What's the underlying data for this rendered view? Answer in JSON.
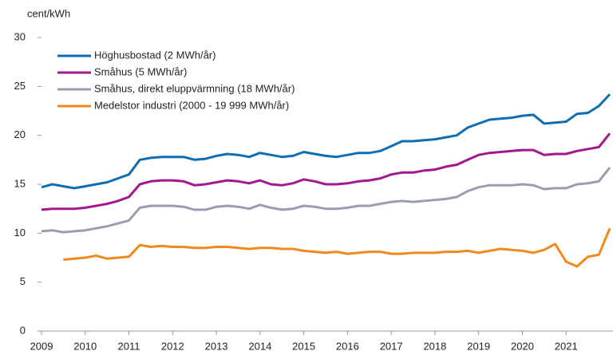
{
  "chart_data": {
    "type": "line",
    "y_label": "cent/kWh",
    "x": [
      2009,
      2009.25,
      2009.5,
      2009.75,
      2010,
      2010.25,
      2010.5,
      2010.75,
      2011,
      2011.25,
      2011.5,
      2011.75,
      2012,
      2012.25,
      2012.5,
      2012.75,
      2013,
      2013.25,
      2013.5,
      2013.75,
      2014,
      2014.25,
      2014.5,
      2014.75,
      2015,
      2015.25,
      2015.5,
      2015.75,
      2016,
      2016.25,
      2016.5,
      2016.75,
      2017,
      2017.25,
      2017.5,
      2017.75,
      2018,
      2018.25,
      2018.5,
      2018.75,
      2019,
      2019.25,
      2019.5,
      2019.75,
      2020,
      2020.25,
      2020.5,
      2020.75,
      2021,
      2021.25,
      2021.5,
      2021.75,
      2022
    ],
    "series": [
      {
        "name": "Höghusbostad (2 MWh/år)",
        "color": "#0e6eb4",
        "values": [
          14.7,
          15.0,
          14.8,
          14.6,
          14.8,
          15.0,
          15.2,
          15.6,
          16.0,
          17.5,
          17.7,
          17.8,
          17.8,
          17.8,
          17.5,
          17.6,
          17.9,
          18.1,
          18.0,
          17.8,
          18.2,
          18.0,
          17.8,
          17.9,
          18.3,
          18.1,
          17.9,
          17.8,
          18.0,
          18.2,
          18.2,
          18.4,
          18.9,
          19.4,
          19.4,
          19.5,
          19.6,
          19.8,
          20.0,
          20.8,
          21.2,
          21.6,
          21.7,
          21.8,
          22.0,
          22.1,
          21.2,
          21.3,
          21.4,
          22.2,
          22.3,
          23.0,
          24.2
        ]
      },
      {
        "name": "Småhus (5 MWh/år)",
        "color": "#a3178f",
        "values": [
          12.4,
          12.5,
          12.5,
          12.5,
          12.6,
          12.8,
          13.0,
          13.3,
          13.7,
          15.0,
          15.3,
          15.4,
          15.4,
          15.3,
          14.9,
          15.0,
          15.2,
          15.4,
          15.3,
          15.1,
          15.4,
          15.0,
          14.9,
          15.1,
          15.5,
          15.3,
          15.0,
          15.0,
          15.1,
          15.3,
          15.4,
          15.6,
          16.0,
          16.2,
          16.2,
          16.4,
          16.5,
          16.8,
          17.0,
          17.5,
          18.0,
          18.2,
          18.3,
          18.4,
          18.5,
          18.5,
          18.0,
          18.1,
          18.1,
          18.4,
          18.6,
          18.8,
          20.2
        ]
      },
      {
        "name": "Småhus, direkt eluppvärmning (18 MWh/år)",
        "color": "#9a9db0",
        "values": [
          10.2,
          10.3,
          10.1,
          10.2,
          10.3,
          10.5,
          10.7,
          11.0,
          11.3,
          12.6,
          12.8,
          12.8,
          12.8,
          12.7,
          12.4,
          12.4,
          12.7,
          12.8,
          12.7,
          12.5,
          12.9,
          12.6,
          12.4,
          12.5,
          12.8,
          12.7,
          12.5,
          12.5,
          12.6,
          12.8,
          12.8,
          13.0,
          13.2,
          13.3,
          13.2,
          13.3,
          13.4,
          13.5,
          13.7,
          14.3,
          14.7,
          14.9,
          14.9,
          14.9,
          15.0,
          14.9,
          14.5,
          14.6,
          14.6,
          15.0,
          15.1,
          15.3,
          16.7
        ]
      },
      {
        "name": "Medelstor industri (2000 - 19 999 MWh/år)",
        "color": "#f08a1c",
        "values": [
          null,
          null,
          7.3,
          7.4,
          7.5,
          7.7,
          7.4,
          7.5,
          7.6,
          8.8,
          8.6,
          8.7,
          8.6,
          8.6,
          8.5,
          8.5,
          8.6,
          8.6,
          8.5,
          8.4,
          8.5,
          8.5,
          8.4,
          8.4,
          8.2,
          8.1,
          8.0,
          8.1,
          7.9,
          8.0,
          8.1,
          8.1,
          7.9,
          7.9,
          8.0,
          8.0,
          8.0,
          8.1,
          8.1,
          8.2,
          8.0,
          8.2,
          8.4,
          8.3,
          8.2,
          8.0,
          8.3,
          8.9,
          7.1,
          6.6,
          7.6,
          7.8,
          10.5
        ]
      }
    ],
    "xlim": [
      2009,
      2022
    ],
    "xticks": [
      2009,
      2010,
      2011,
      2012,
      2013,
      2014,
      2015,
      2016,
      2017,
      2018,
      2019,
      2020,
      2021
    ],
    "ylim": [
      0,
      30
    ],
    "yticks": [
      0,
      5,
      10,
      15,
      20,
      25,
      30
    ],
    "grid": false,
    "legend": "upper left"
  }
}
